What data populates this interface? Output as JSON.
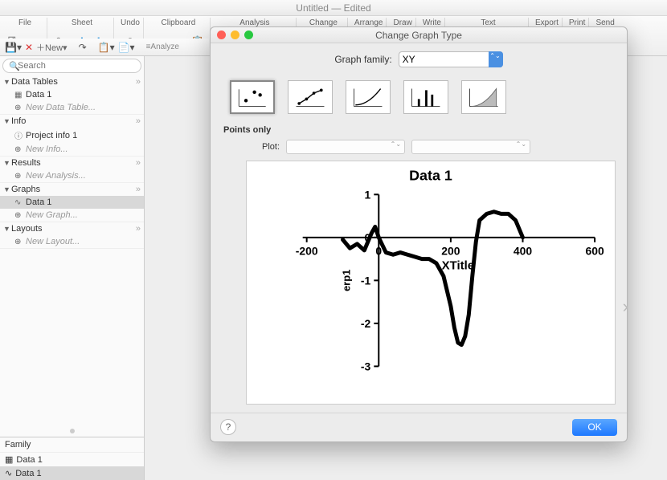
{
  "window": {
    "title": "Untitled — Edited"
  },
  "toolbar": {
    "groups": [
      {
        "label": "File"
      },
      {
        "label": "Sheet"
      },
      {
        "label": "Undo"
      },
      {
        "label": "Clipboard"
      },
      {
        "label": "Analysis"
      },
      {
        "label": "Change"
      },
      {
        "label": "Arrange"
      },
      {
        "label": "Draw"
      },
      {
        "label": "Write"
      },
      {
        "label": "Text"
      },
      {
        "label": "Export"
      },
      {
        "label": "Print"
      },
      {
        "label": "Send"
      }
    ],
    "new_label": "New"
  },
  "sidebar": {
    "search_placeholder": "Search",
    "sections": [
      {
        "label": "Data Tables",
        "items": [
          {
            "label": "Data 1",
            "icon": "table",
            "sel": false
          },
          {
            "label": "New Data Table...",
            "icon": "plus",
            "new": true
          }
        ]
      },
      {
        "label": "Info",
        "items": [
          {
            "label": "Project info 1",
            "icon": "info"
          },
          {
            "label": "New Info...",
            "icon": "plus",
            "new": true
          }
        ]
      },
      {
        "label": "Results",
        "items": [
          {
            "label": "New Analysis...",
            "icon": "plus",
            "new": true
          }
        ]
      },
      {
        "label": "Graphs",
        "items": [
          {
            "label": "Data 1",
            "icon": "graph",
            "sel": true
          },
          {
            "label": "New Graph...",
            "icon": "plus",
            "new": true
          }
        ]
      },
      {
        "label": "Layouts",
        "items": [
          {
            "label": "New Layout...",
            "icon": "plus",
            "new": true
          }
        ]
      }
    ],
    "family_label": "Family",
    "family_items": [
      {
        "label": "Data 1",
        "icon": "table"
      },
      {
        "label": "Data 1",
        "icon": "graph",
        "sel": true
      }
    ]
  },
  "dialog": {
    "title": "Change Graph Type",
    "family_label": "Graph family:",
    "family_value": "XY",
    "thumbs": [
      {
        "type": "scatter",
        "sel": true
      },
      {
        "type": "line-points"
      },
      {
        "type": "curve"
      },
      {
        "type": "bars"
      },
      {
        "type": "area"
      }
    ],
    "subhead": "Points only",
    "plot_label": "Plot:",
    "ok_label": "OK",
    "help_label": "?",
    "preview_chart": {
      "type": "line",
      "title": "Data 1",
      "title_fontsize": 18,
      "title_weight": "bold",
      "xlabel": "XTitle",
      "ylabel": "erp1",
      "label_fontsize": 13,
      "xlim": [
        -200,
        600
      ],
      "ylim": [
        -3,
        1
      ],
      "xticks": [
        -200,
        0,
        200,
        400,
        600
      ],
      "yticks": [
        -3,
        -2,
        -1,
        0,
        1
      ],
      "line_color": "#000000",
      "line_width": 5,
      "background_color": "#ffffff",
      "axis_color": "#000000",
      "tick_fontsize": 14,
      "series": [
        [
          -100,
          -0.05
        ],
        [
          -80,
          -0.25
        ],
        [
          -60,
          -0.15
        ],
        [
          -40,
          -0.3
        ],
        [
          -20,
          0.1
        ],
        [
          -10,
          0.25
        ],
        [
          0,
          0.0
        ],
        [
          20,
          -0.35
        ],
        [
          40,
          -0.4
        ],
        [
          60,
          -0.35
        ],
        [
          80,
          -0.4
        ],
        [
          100,
          -0.45
        ],
        [
          120,
          -0.5
        ],
        [
          140,
          -0.5
        ],
        [
          160,
          -0.6
        ],
        [
          180,
          -0.9
        ],
        [
          200,
          -1.6
        ],
        [
          210,
          -2.1
        ],
        [
          220,
          -2.45
        ],
        [
          230,
          -2.5
        ],
        [
          240,
          -2.3
        ],
        [
          250,
          -1.8
        ],
        [
          260,
          -0.9
        ],
        [
          270,
          -0.1
        ],
        [
          280,
          0.4
        ],
        [
          300,
          0.55
        ],
        [
          320,
          0.6
        ],
        [
          340,
          0.55
        ],
        [
          360,
          0.55
        ],
        [
          380,
          0.4
        ],
        [
          400,
          0.0
        ]
      ]
    }
  },
  "colors": {
    "accent": "#1e78ff",
    "sel_bg": "#d8d8d8",
    "dialog_bg": "#ececec"
  }
}
